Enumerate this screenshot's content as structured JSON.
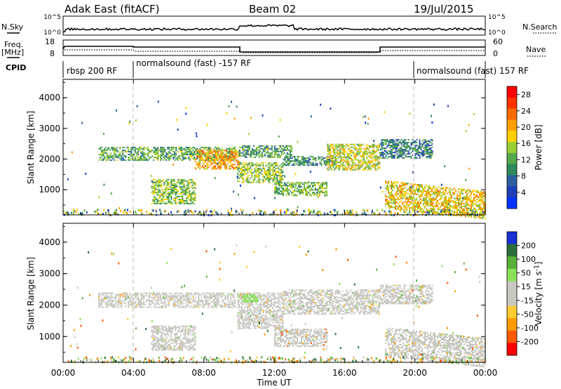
{
  "header": {
    "radar": "Adak East (fitACF)",
    "beam": "Beam 02",
    "date": "19/Jul/2015"
  },
  "left_labels": {
    "nsky": "N.Sky",
    "freq_line1": "Freq.",
    "freq_line2": "[MHz]",
    "cpid": "CPID"
  },
  "right_labels": {
    "nsearch": "N.Search",
    "nave": "Nave"
  },
  "noise_axis": {
    "left_ticks": [
      "10^5",
      "10^0"
    ],
    "right_ticks": [
      "10^5",
      "10^0"
    ]
  },
  "freq_axis": {
    "left_ticks": [
      "18",
      "8"
    ],
    "right_ticks": [
      "60",
      "0"
    ]
  },
  "cpid_segments": [
    "rbsp 200 RF",
    "normalsound (fast) -157 RF",
    "normalsound (fast) 157 RF"
  ],
  "colors": {
    "power_scale": [
      "#0033ff",
      "#1e3fb8",
      "#2c5fa0",
      "#2f8a5e",
      "#55a84c",
      "#9acd32",
      "#ffd000",
      "#ffa000",
      "#ff6a00",
      "#ff3300",
      "#ff0000"
    ],
    "velocity_scale": [
      "#1a2fd6",
      "#2c6f3a",
      "#57b13b",
      "#8be05a",
      "#c8c8c0",
      "#c8c8c0",
      "#ffcc33",
      "#ff9a00",
      "#ff5a00",
      "#ff0000"
    ]
  },
  "chart_data": [
    {
      "type": "heatmap",
      "panel": "power",
      "xlabel": "Time UT",
      "ylabel": "Slant Range [km]",
      "x_ticks": [
        "00:00",
        "04:00",
        "08:00",
        "12:00",
        "16:00",
        "20:00",
        "00:00"
      ],
      "y_ticks": [
        1000,
        2000,
        3000,
        4000
      ],
      "xlim": [
        0,
        24
      ],
      "ylim": [
        180,
        4600
      ],
      "colorbar": {
        "label": "Power [dB]",
        "ticks": [
          4,
          8,
          12,
          16,
          20,
          24,
          28
        ],
        "range": [
          0,
          30
        ]
      },
      "vertical_markers_hours": [
        4,
        20
      ],
      "regions": [
        {
          "t0": 2.0,
          "t1": 9.8,
          "r0": 1950,
          "r1": 2400,
          "val": 12
        },
        {
          "t0": 7.5,
          "t1": 10.0,
          "r0": 1700,
          "r1": 2300,
          "val": 20
        },
        {
          "t0": 9.9,
          "t1": 12.5,
          "r0": 1250,
          "r1": 1900,
          "val": 14
        },
        {
          "t0": 10.0,
          "t1": 13.0,
          "r0": 2050,
          "r1": 2450,
          "val": 11
        },
        {
          "t0": 12.5,
          "t1": 15.5,
          "r0": 1800,
          "r1": 2100,
          "val": 10
        },
        {
          "t0": 15.0,
          "t1": 18.0,
          "r0": 1650,
          "r1": 2500,
          "val": 16
        },
        {
          "t0": 18.0,
          "t1": 21.0,
          "r0": 2050,
          "r1": 2650,
          "val": 9
        },
        {
          "t0": 5.0,
          "t1": 7.5,
          "r0": 550,
          "r1": 1350,
          "val": 14
        },
        {
          "t0": 12.0,
          "t1": 15.0,
          "r0": 800,
          "r1": 1250,
          "val": 13
        },
        {
          "t0": 18.3,
          "t1": 24.0,
          "r0": 400,
          "r1": 1300,
          "val": 18
        }
      ]
    },
    {
      "type": "heatmap",
      "panel": "velocity",
      "xlabel": "Time UT",
      "ylabel": "Slant Range [km]",
      "x_ticks": [
        "00:00",
        "04:00",
        "08:00",
        "12:00",
        "16:00",
        "20:00",
        "00:00"
      ],
      "y_ticks": [
        1000,
        2000,
        3000,
        4000
      ],
      "xlim": [
        0,
        24
      ],
      "ylim": [
        180,
        4600
      ],
      "colorbar": {
        "label": "Velocity [m s^-1]",
        "ticks": [
          200,
          100,
          50,
          15,
          -15,
          -50,
          -100,
          -200
        ],
        "range": [
          -250,
          250
        ]
      },
      "vertical_markers_hours": [
        4,
        20
      ],
      "regions": [
        {
          "t0": 2.0,
          "t1": 9.8,
          "r0": 1950,
          "r1": 2400,
          "val": 0
        },
        {
          "t0": 9.9,
          "t1": 12.5,
          "r0": 1250,
          "r1": 2400,
          "val": 0
        },
        {
          "t0": 10.2,
          "t1": 11.0,
          "r0": 2100,
          "r1": 2350,
          "val": 90
        },
        {
          "t0": 12.5,
          "t1": 18.0,
          "r0": 1700,
          "r1": 2500,
          "val": 0
        },
        {
          "t0": 18.0,
          "t1": 21.0,
          "r0": 2050,
          "r1": 2650,
          "val": 0
        },
        {
          "t0": 5.0,
          "t1": 7.5,
          "r0": 550,
          "r1": 1350,
          "val": 0
        },
        {
          "t0": 12.0,
          "t1": 15.0,
          "r0": 700,
          "r1": 1250,
          "val": -40
        },
        {
          "t0": 18.3,
          "t1": 24.0,
          "r0": 400,
          "r1": 1300,
          "val": 0
        }
      ]
    }
  ]
}
